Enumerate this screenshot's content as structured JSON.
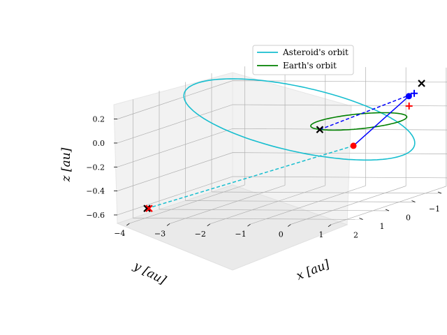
{
  "chart_data": {
    "type": "line",
    "projection": "3d",
    "xlabel": "$x$ [au]",
    "ylabel": "$y$ [au]",
    "zlabel": "$z$ [au]",
    "xlim": [
      -4.3,
      1.4
    ],
    "ylim": [
      -1.8,
      2.6
    ],
    "zlim": [
      -0.67,
      0.32
    ],
    "x_ticks": [
      "−4",
      "−3",
      "−2",
      "−1",
      "0",
      "1"
    ],
    "y_ticks": [
      "2",
      "1",
      "0",
      "−1"
    ],
    "z_ticks": [
      "0.2",
      "0.0",
      "−0.2",
      "−0.4",
      "−0.6"
    ],
    "x_tick_values": [
      -4,
      -3,
      -2,
      -1,
      0,
      1
    ],
    "y_tick_values": [
      2,
      1,
      0,
      -1
    ],
    "z_tick_values": [
      0.2,
      0.0,
      -0.2,
      -0.4,
      -0.6
    ],
    "grid": true,
    "legend_position": "top-right",
    "colors": {
      "asteroid": "#17becf",
      "earth": "#008000",
      "transfer": "#0000ff",
      "pane": "#f2f2f2",
      "grid": "#b0b0b0"
    },
    "series": [
      {
        "name": "Asteroid's orbit",
        "kind": "ellipse",
        "color": "#17becf",
        "semi_major_au": 2.6,
        "eccentricity": 0.6,
        "inclination_deg": 9,
        "ascending_node_deg": 80,
        "arg_perihelion_deg": 210
      },
      {
        "name": "Earth's orbit",
        "kind": "circle",
        "color": "#008000",
        "radius_au": 1.0
      }
    ],
    "markers": [
      {
        "marker": "x",
        "color": "#000000",
        "x": -0.35,
        "y": 0.95,
        "z": 0.0
      },
      {
        "marker": "x",
        "color": "#000000",
        "x": 1.2,
        "y": -0.55,
        "z": 0.28
      },
      {
        "marker": "x",
        "color": "#000000",
        "x": -4.05,
        "y": 1.85,
        "z": -0.6
      },
      {
        "marker": "x",
        "color": "#ff0000",
        "x": -4.0,
        "y": 1.85,
        "z": -0.6
      },
      {
        "marker": "o",
        "color": "#ff0000",
        "x": -0.1,
        "y": 0.05,
        "z": -0.2
      },
      {
        "marker": "o",
        "color": "#0000ff",
        "x": 0.95,
        "y": -0.45,
        "z": 0.18
      },
      {
        "marker": "+",
        "color": "#0000ff",
        "x": 1.05,
        "y": -0.5,
        "z": 0.2
      },
      {
        "marker": "+",
        "color": "#ff0000",
        "x": 1.15,
        "y": -0.15,
        "z": 0.12
      }
    ],
    "transfer_paths": [
      {
        "style": "solid",
        "color": "#0000ff",
        "from": [
          -0.1,
          0.05,
          -0.2
        ],
        "to": [
          0.95,
          -0.45,
          0.18
        ]
      },
      {
        "style": "dashed",
        "color": "#0000ff",
        "from": [
          -0.35,
          0.95,
          0.0
        ],
        "to": [
          1.05,
          -0.5,
          0.2
        ]
      },
      {
        "style": "dashed",
        "color": "#17becf",
        "from": [
          -4.05,
          1.85,
          -0.6
        ],
        "to": [
          -0.1,
          0.05,
          -0.2
        ]
      }
    ]
  }
}
